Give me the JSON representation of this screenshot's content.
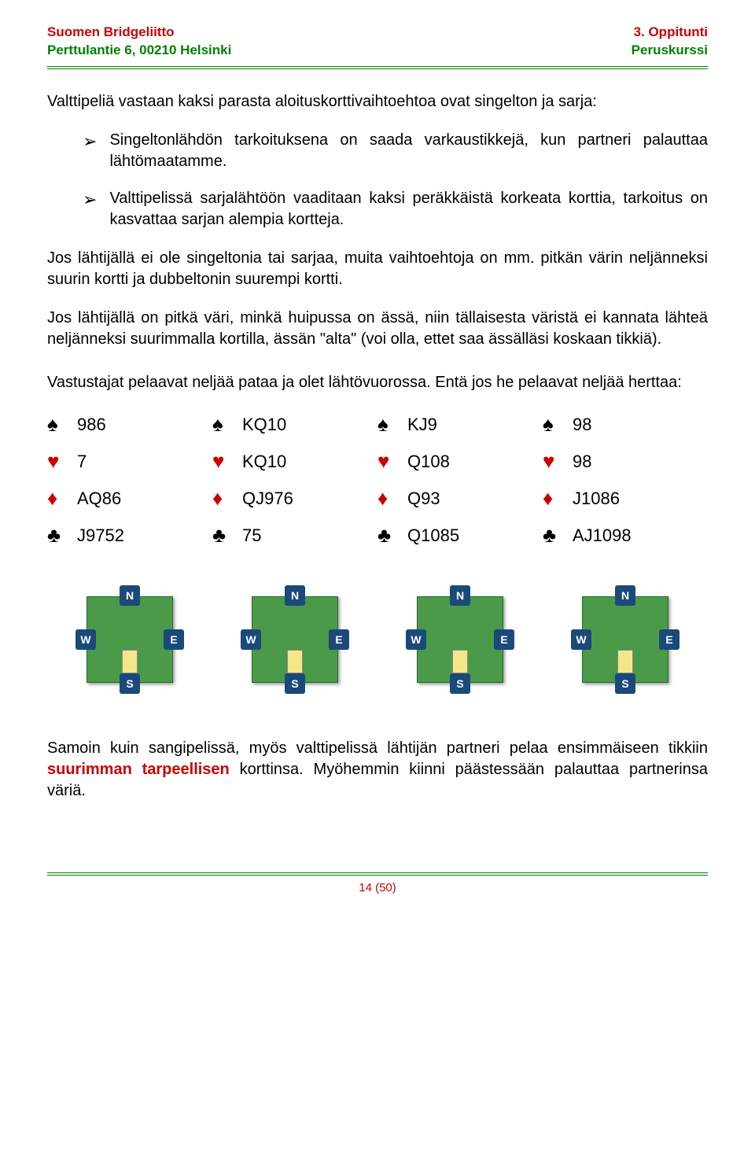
{
  "header": {
    "org": "Suomen Bridgeliitto",
    "address": "Perttulantie 6, 00210 Helsinki",
    "lesson": "3. Oppitunti",
    "course": "Peruskurssi"
  },
  "colors": {
    "red": "#cc0000",
    "green": "#008000",
    "table_green": "#4a9a4a",
    "seat_blue": "#1a4a7a",
    "card_yellow": "#f5e68c"
  },
  "intro": "Valttipeliä vastaan kaksi parasta aloituskorttivaihtoehtoa ovat singelton ja sarja:",
  "bullets": [
    "Singeltonlähdön tarkoituksena on saada varkaustikkejä, kun partneri palauttaa lähtömaatamme.",
    "Valttipelissä sarjalähtöön vaaditaan kaksi peräkkäistä korkeata korttia, tarkoitus on kasvattaa sarjan alempia kortteja."
  ],
  "para2": "Jos lähtijällä ei ole singeltonia tai sarjaa, muita vaihtoehtoja on mm. pitkän värin neljänneksi suurin kortti ja dubbeltonin suurempi kortti.",
  "para3": "Jos lähtijällä on pitkä väri, minkä huipussa on ässä, niin tällaisesta väristä ei kannata lähteä neljänneksi suurimmalla kortilla, ässän \"alta\"  (voi olla, ettet saa ässälläsi koskaan tikkiä).",
  "para4": "Vastustajat pelaavat neljää pataa ja olet lähtövuorossa. Entä jos he pelaavat neljää herttaa:",
  "hands": [
    {
      "spades": "986",
      "hearts": "7",
      "diamonds": "AQ86",
      "clubs": "J9752"
    },
    {
      "spades": "KQ10",
      "hearts": "KQ10",
      "diamonds": "QJ976",
      "clubs": "75"
    },
    {
      "spades": "KJ9",
      "hearts": "Q108",
      "diamonds": "Q93",
      "clubs": "Q1085"
    },
    {
      "spades": "98",
      "hearts": "98",
      "diamonds": "J1086",
      "clubs": "AJ1098"
    }
  ],
  "seats": {
    "n": "N",
    "s": "S",
    "e": "E",
    "w": "W"
  },
  "closing_pre": "Samoin kuin sangipelissä, myös valttipelissä lähtijän partneri pelaa ensimmäiseen tikkiin ",
  "closing_bold": "suurimman tarpeellisen",
  "closing_post": " korttinsa. Myöhemmin kiinni päästessään palauttaa partnerinsa väriä.",
  "page_num": "14 (50)",
  "suits": {
    "spades": {
      "symbol": "♠",
      "class": "black-suit"
    },
    "hearts": {
      "symbol": "♥",
      "class": "red-suit"
    },
    "diamonds": {
      "symbol": "♦",
      "class": "red-suit"
    },
    "clubs": {
      "symbol": "♣",
      "class": "black-suit"
    }
  }
}
